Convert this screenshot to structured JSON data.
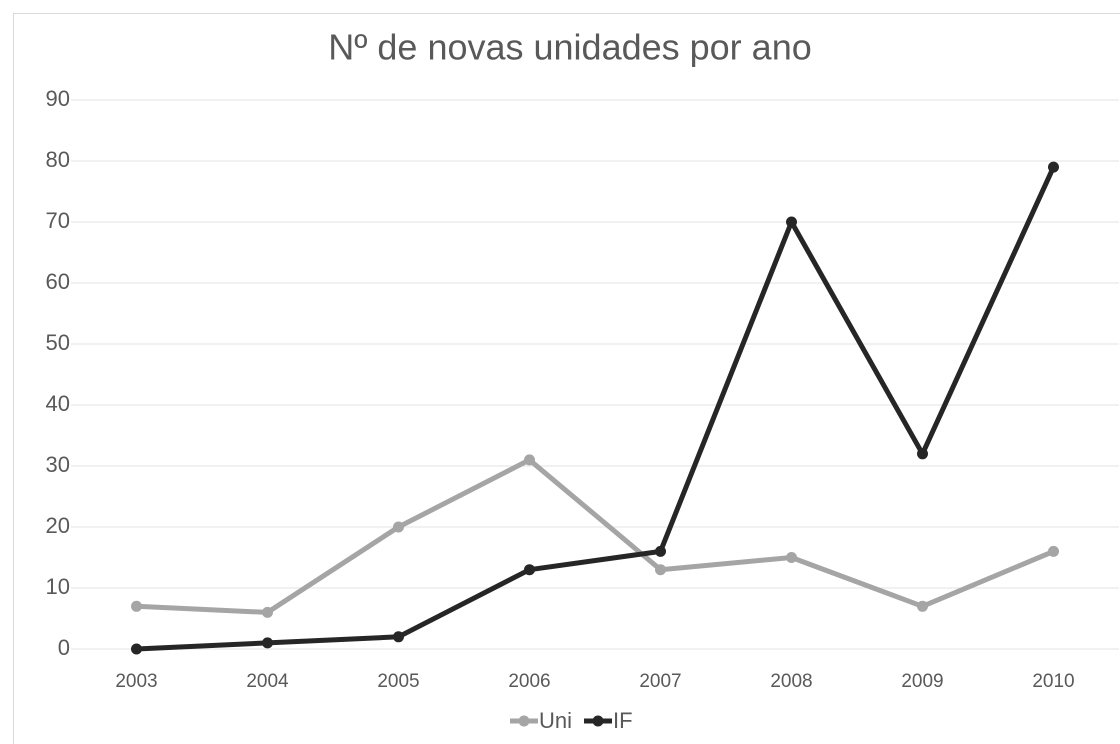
{
  "chart_data": {
    "type": "line",
    "title": "Nº de novas unidades por ano",
    "categories": [
      "2003",
      "2004",
      "2005",
      "2006",
      "2007",
      "2008",
      "2009",
      "2010"
    ],
    "series": [
      {
        "name": "Uni",
        "color": "#a5a5a5",
        "values": [
          7,
          6,
          20,
          31,
          13,
          15,
          7,
          16
        ]
      },
      {
        "name": "IF",
        "color": "#262626",
        "values": [
          0,
          1,
          2,
          13,
          16,
          70,
          32,
          79
        ]
      }
    ],
    "ylim": [
      0,
      90
    ],
    "yticks": [
      0,
      10,
      20,
      30,
      40,
      50,
      60,
      70,
      80,
      90
    ],
    "grid": true,
    "legend": "bottom"
  }
}
